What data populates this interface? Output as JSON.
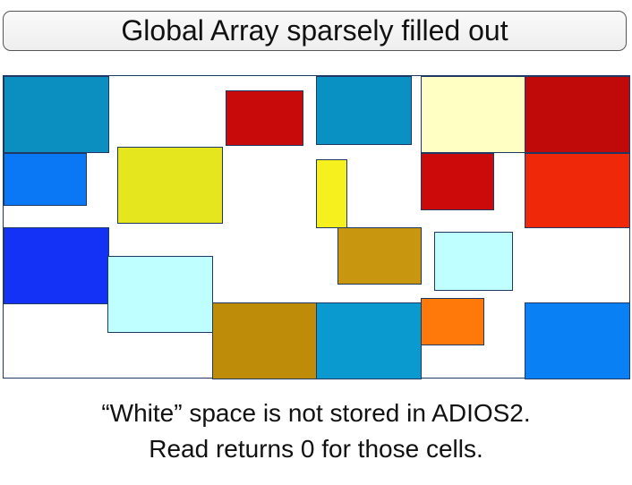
{
  "title": "Global Array sparsely filled out",
  "caption": {
    "line1": "“White” space is not stored in ADIOS2.",
    "line2": "Read returns 0 for those cells."
  },
  "blocks": [
    {
      "name": "block-teal-top-left",
      "color": "#0a8fc0"
    },
    {
      "name": "block-azure-left",
      "color": "#0a78f5"
    },
    {
      "name": "block-blue-left",
      "color": "#1432f5"
    },
    {
      "name": "block-lightcyan-left",
      "color": "#c0ffff"
    },
    {
      "name": "block-yellow-large",
      "color": "#e6e61e"
    },
    {
      "name": "block-red-top",
      "color": "#c80a0a"
    },
    {
      "name": "block-teal-top-center",
      "color": "#0a91c4"
    },
    {
      "name": "block-yellow-narrow",
      "color": "#f5f01e"
    },
    {
      "name": "block-ochre-center",
      "color": "#c8960f"
    },
    {
      "name": "block-lightyellow-top",
      "color": "#ffffc4"
    },
    {
      "name": "block-red-middle",
      "color": "#cc0a0a"
    },
    {
      "name": "block-lightcyan-right",
      "color": "#c0ffff"
    },
    {
      "name": "block-orange-bottom",
      "color": "#ff780a"
    },
    {
      "name": "block-darkred-top-right",
      "color": "#c00a0a"
    },
    {
      "name": "block-redorange-right",
      "color": "#f0280a"
    },
    {
      "name": "block-ochre-bottom",
      "color": "#bf8c0a"
    },
    {
      "name": "block-teal-bottom-center",
      "color": "#0a9ad0"
    },
    {
      "name": "block-azure-bottom-right",
      "color": "#0a80f5"
    }
  ]
}
